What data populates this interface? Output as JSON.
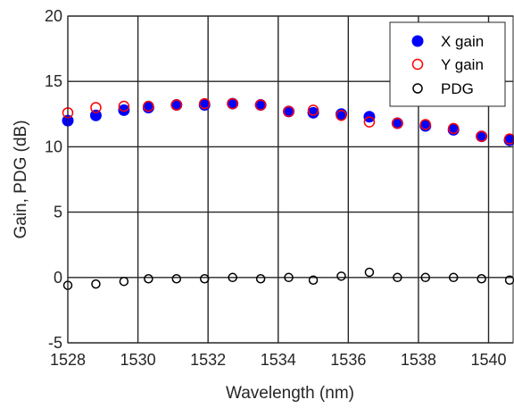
{
  "chart_data": {
    "type": "scatter",
    "xlabel": "Wavelength (nm)",
    "ylabel": "Gain, PDG (dB)",
    "xlim": [
      1528,
      1540.7
    ],
    "ylim": [
      -5,
      20
    ],
    "xticks": [
      1528,
      1530,
      1532,
      1534,
      1536,
      1538,
      1540
    ],
    "yticks": [
      -5,
      0,
      5,
      10,
      15,
      20
    ],
    "grid": true,
    "legend_position": "top-right",
    "series": [
      {
        "name": "X gain",
        "marker": "filled-circle",
        "color": "#0000ff",
        "x": [
          1528.0,
          1528.8,
          1529.6,
          1530.3,
          1531.1,
          1531.9,
          1532.7,
          1533.5,
          1534.3,
          1535.0,
          1535.8,
          1536.6,
          1537.4,
          1538.2,
          1539.0,
          1539.8,
          1540.6
        ],
        "y": [
          12.0,
          12.4,
          12.8,
          13.0,
          13.2,
          13.2,
          13.3,
          13.2,
          12.7,
          12.6,
          12.5,
          12.3,
          11.8,
          11.6,
          11.3,
          10.8,
          10.5
        ]
      },
      {
        "name": "Y gain",
        "marker": "open-circle",
        "color": "#ff0000",
        "x": [
          1528.0,
          1528.8,
          1529.6,
          1530.3,
          1531.1,
          1531.9,
          1532.7,
          1533.5,
          1534.3,
          1535.0,
          1535.8,
          1536.6,
          1537.4,
          1538.2,
          1539.0,
          1539.8,
          1540.6
        ],
        "y": [
          12.6,
          13.0,
          13.1,
          13.1,
          13.2,
          13.3,
          13.3,
          13.2,
          12.7,
          12.8,
          12.4,
          11.9,
          11.8,
          11.7,
          11.4,
          10.8,
          10.6
        ]
      },
      {
        "name": "PDG",
        "marker": "open-circle",
        "color": "#000000",
        "x": [
          1528.0,
          1528.8,
          1529.6,
          1530.3,
          1531.1,
          1531.9,
          1532.7,
          1533.5,
          1534.3,
          1535.0,
          1535.8,
          1536.6,
          1537.4,
          1538.2,
          1539.0,
          1539.8,
          1540.6
        ],
        "y": [
          -0.6,
          -0.5,
          -0.3,
          -0.1,
          -0.1,
          -0.1,
          0.0,
          -0.1,
          0.0,
          -0.2,
          0.1,
          0.4,
          0.0,
          0.0,
          0.0,
          -0.1,
          -0.2
        ]
      }
    ]
  }
}
